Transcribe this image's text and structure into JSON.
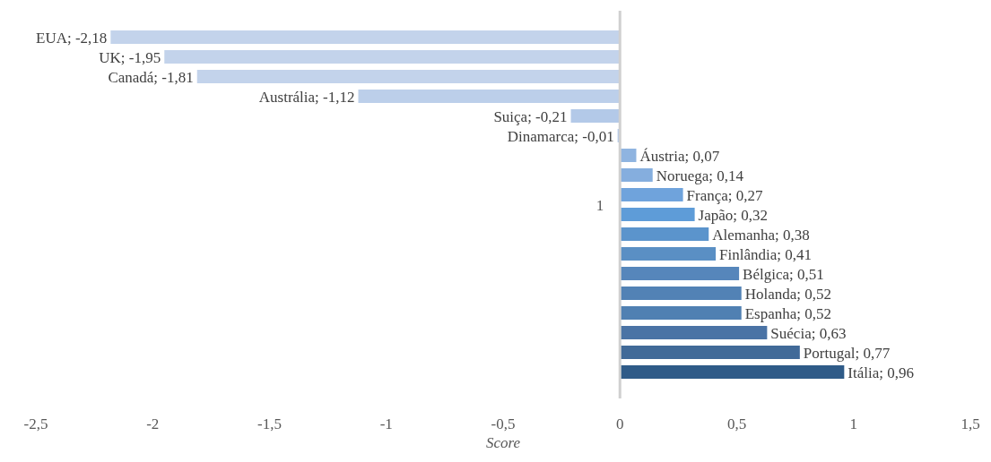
{
  "chart_data": {
    "type": "bar",
    "orientation": "horizontal",
    "xlabel": "Score",
    "categories": [
      "1"
    ],
    "series": [
      {
        "color": "#c3d3eb",
        "values": [
          -2.18
        ],
        "value_labels": [
          "EUA; -2,18"
        ]
      },
      {
        "color": "#c3d3eb",
        "values": [
          -1.95
        ],
        "value_labels": [
          "UK; -1,95"
        ]
      },
      {
        "color": "#c3d3eb",
        "values": [
          -1.81
        ],
        "value_labels": [
          "Canadá; -1,81"
        ]
      },
      {
        "color": "#bccfea",
        "values": [
          -1.12
        ],
        "value_labels": [
          "Austrália; -1,12"
        ]
      },
      {
        "color": "#b3c9e8",
        "values": [
          -0.21
        ],
        "value_labels": [
          "Suiça; -0,21"
        ]
      },
      {
        "color": "#b3c9e8",
        "values": [
          -0.01
        ],
        "value_labels": [
          "Dinamarca; -0,01"
        ]
      },
      {
        "color": "#8fb4e0",
        "values": [
          0.07
        ],
        "value_labels": [
          "Áustria; 0,07"
        ]
      },
      {
        "color": "#85aede",
        "values": [
          0.14
        ],
        "value_labels": [
          "Noruega; 0,14"
        ]
      },
      {
        "color": "#6fa3dc",
        "values": [
          0.27
        ],
        "value_labels": [
          "França; 0,27"
        ]
      },
      {
        "color": "#5e9cd8",
        "values": [
          0.32
        ],
        "value_labels": [
          "Japão; 0,32"
        ]
      },
      {
        "color": "#5b94cc",
        "values": [
          0.38
        ],
        "value_labels": [
          "Alemanha; 0,38"
        ]
      },
      {
        "color": "#5a8fc4",
        "values": [
          0.41
        ],
        "value_labels": [
          "Finlândia; 0,41"
        ]
      },
      {
        "color": "#5686bb",
        "values": [
          0.51
        ],
        "value_labels": [
          "Bélgica; 0,51"
        ]
      },
      {
        "color": "#5282b5",
        "values": [
          0.52
        ],
        "value_labels": [
          "Holanda; 0,52"
        ]
      },
      {
        "color": "#5080b2",
        "values": [
          0.52
        ],
        "value_labels": [
          "Espanha; 0,52"
        ]
      },
      {
        "color": "#4a73a5",
        "values": [
          0.63
        ],
        "value_labels": [
          "Suécia; 0,63"
        ]
      },
      {
        "color": "#416a98",
        "values": [
          0.77
        ],
        "value_labels": [
          "Portugal; 0,77"
        ]
      },
      {
        "color": "#2f5b88",
        "values": [
          0.96
        ],
        "value_labels": [
          "Itália; 0,96"
        ]
      }
    ],
    "xlim": [
      -2.5,
      1.5
    ],
    "xticks": [
      {
        "value": -2.5,
        "label": "-2,5"
      },
      -2,
      {
        "value": -1.5,
        "label": "-1,5"
      },
      -1,
      {
        "value": -0.5,
        "label": "-0,5"
      },
      0,
      {
        "value": 0.5,
        "label": "0,5"
      },
      1,
      {
        "value": 1.5,
        "label": "1,5"
      }
    ]
  }
}
